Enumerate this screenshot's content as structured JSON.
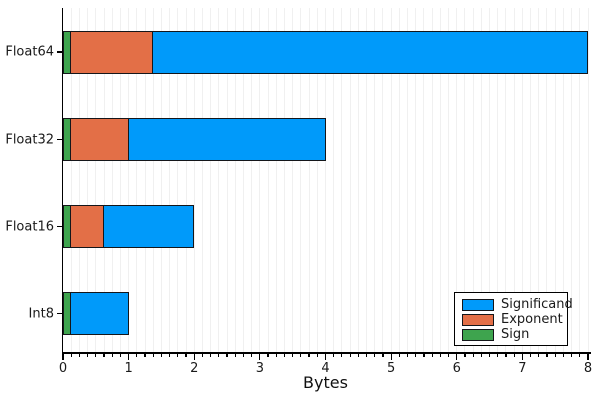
{
  "chart_data": {
    "type": "bar",
    "orientation": "horizontal",
    "title": "",
    "xlabel": "Bytes",
    "ylabel": "",
    "xlim": [
      0,
      8
    ],
    "xticks": [
      0,
      1,
      2,
      3,
      4,
      5,
      6,
      7,
      8
    ],
    "minor_tick_step": 0.125,
    "grid": "vertical-minor-on",
    "categories": [
      "Float64",
      "Float32",
      "Float16",
      "Int8"
    ],
    "bars": [
      {
        "label": "Float64",
        "total_bytes": 8,
        "sign_end": 0.125,
        "exponent_end": 1.375
      },
      {
        "label": "Float32",
        "total_bytes": 4,
        "sign_end": 0.125,
        "exponent_end": 1.0
      },
      {
        "label": "Float16",
        "total_bytes": 2,
        "sign_end": 0.125,
        "exponent_end": 0.625
      },
      {
        "label": "Int8",
        "total_bytes": 1,
        "sign_end": 0.125,
        "exponent_end": null
      }
    ],
    "series": [
      {
        "name": "Significand",
        "color": "#009AFA"
      },
      {
        "name": "Exponent",
        "color": "#E36F47"
      },
      {
        "name": "Sign",
        "color": "#3EA44E"
      }
    ],
    "legend": {
      "position": "bottom-right",
      "entries": [
        "Significand",
        "Exponent",
        "Sign"
      ]
    },
    "colors": {
      "significand": "#009AFA",
      "exponent": "#E36F47",
      "sign": "#3EA44E",
      "bar_border": "#14161A",
      "axis": "#000000",
      "gridline": "#F0F0F0",
      "background": "#FFFFFF",
      "text": "#1A1A1A"
    }
  }
}
